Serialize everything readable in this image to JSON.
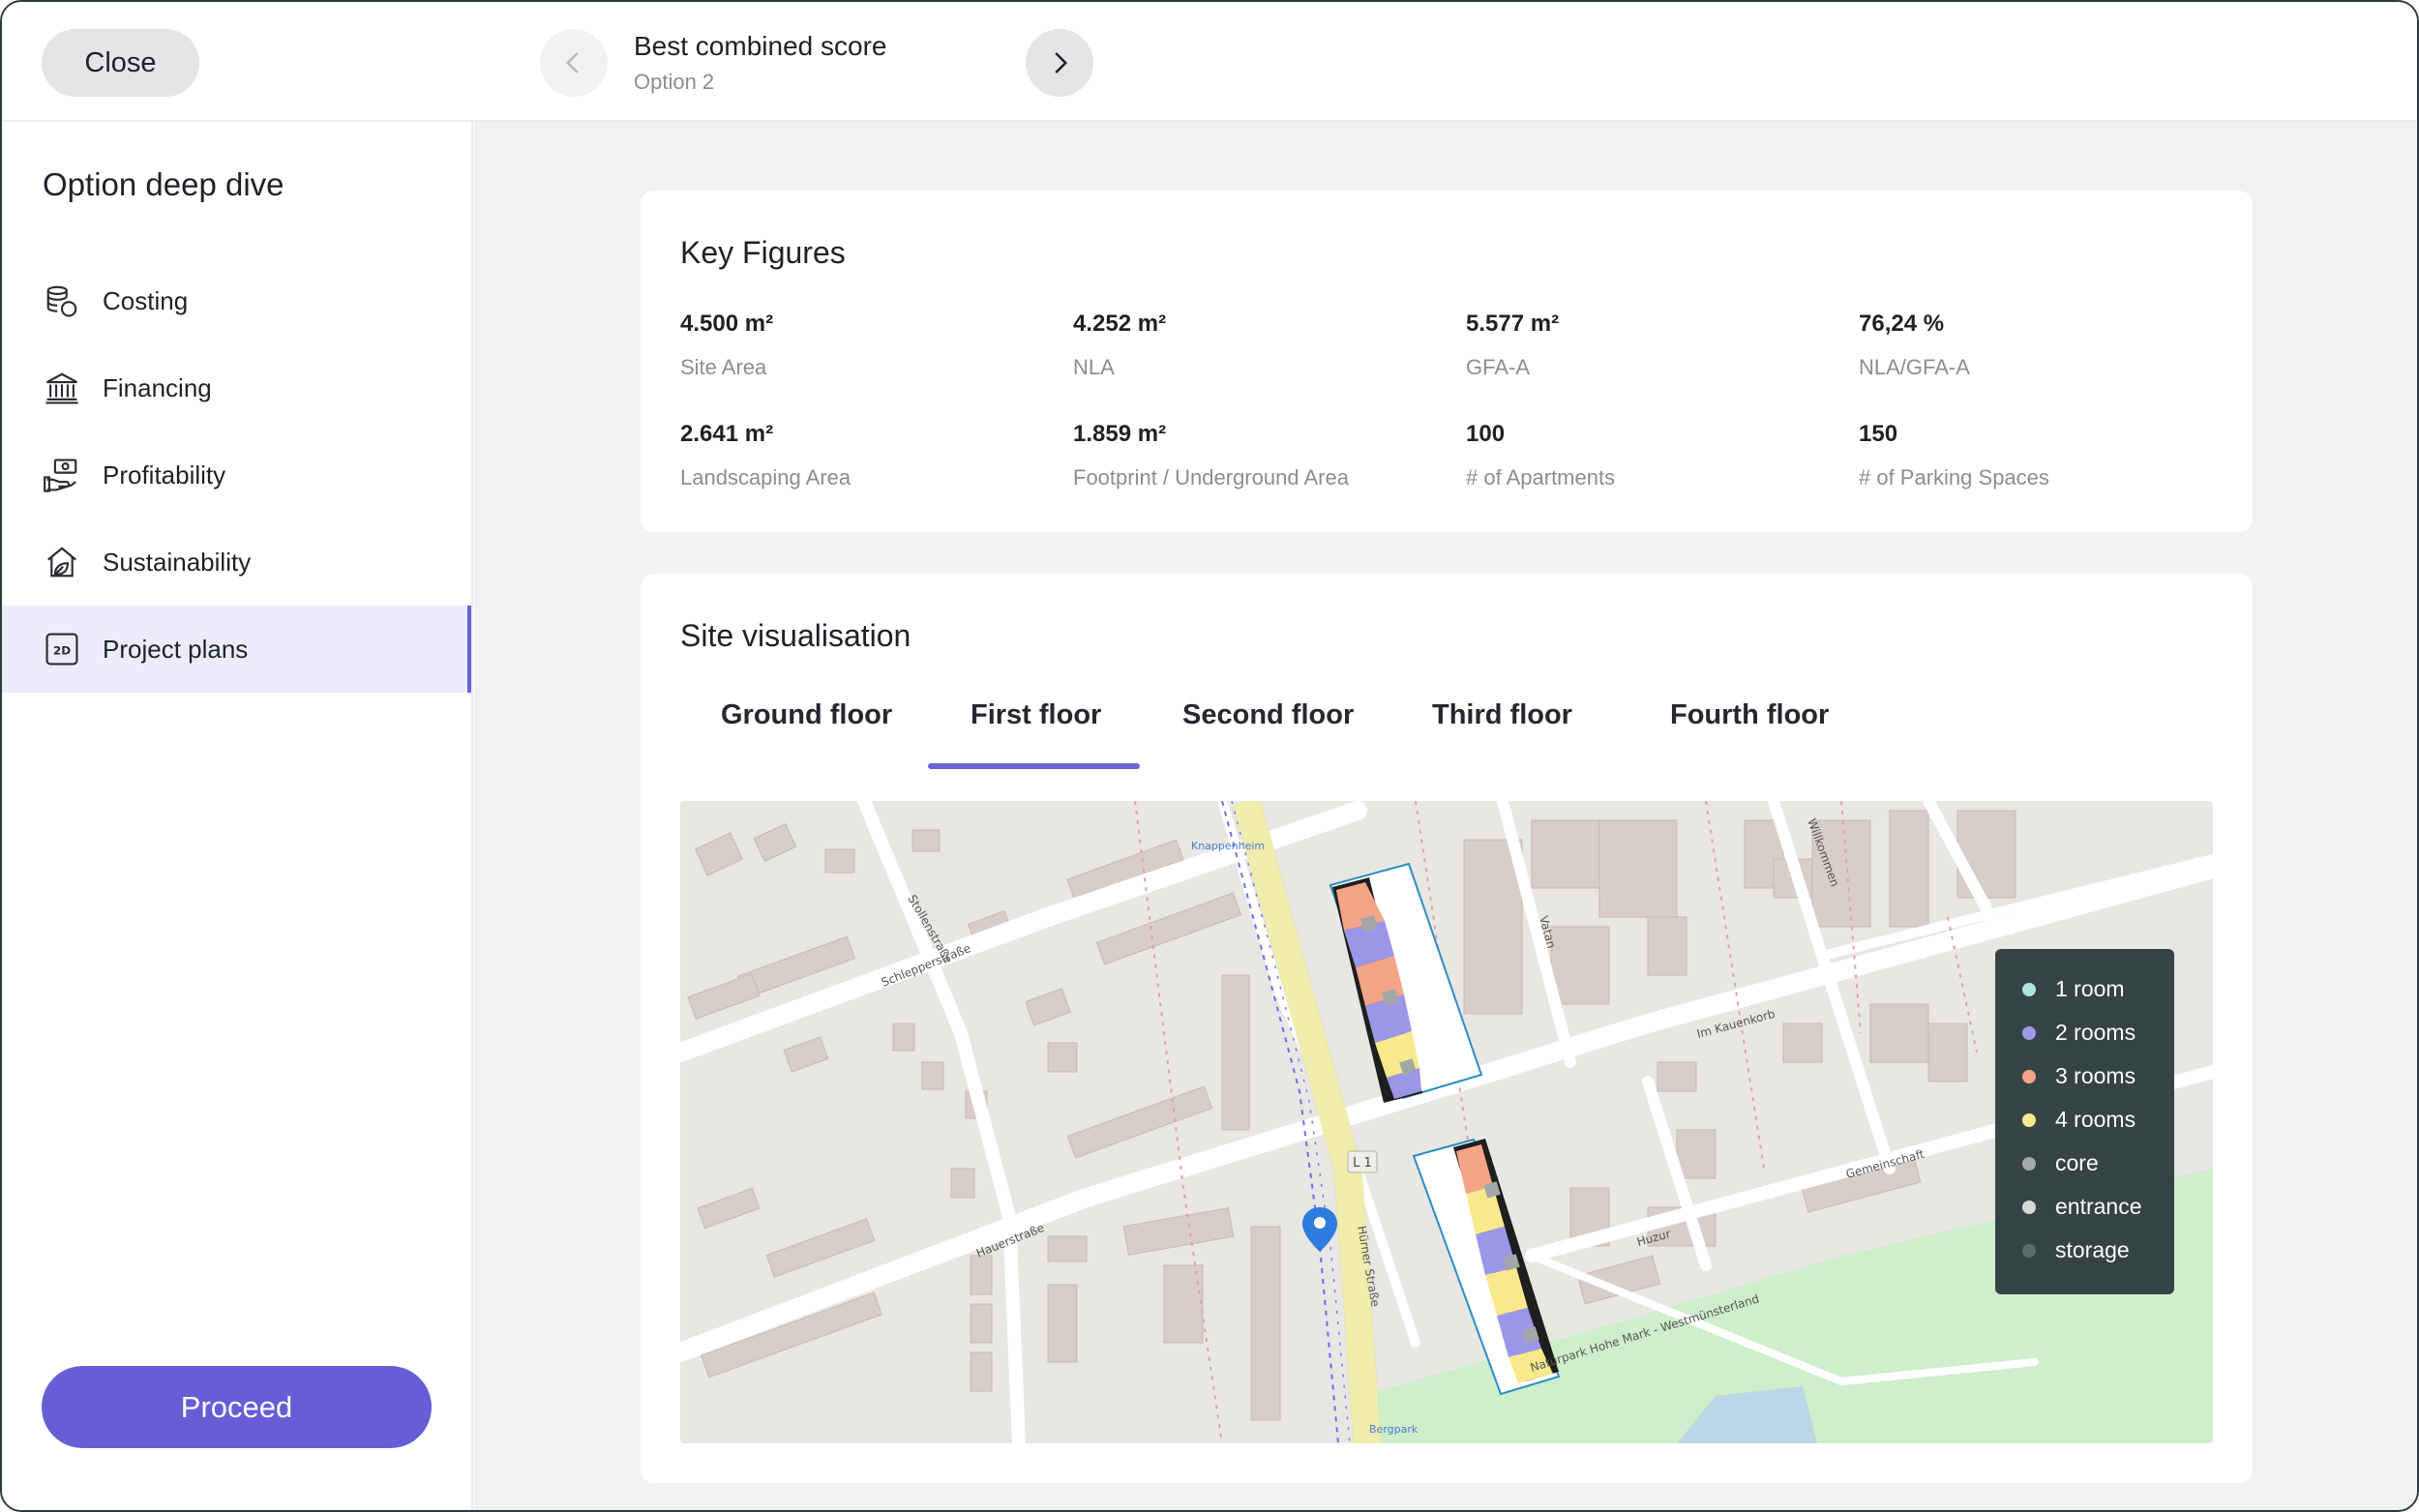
{
  "topbar": {
    "close_label": "Close",
    "score_title": "Best combined score",
    "score_subtitle": "Option 2"
  },
  "sidebar": {
    "title": "Option deep dive",
    "items": [
      {
        "label": "Costing",
        "icon": "coins-stack-icon"
      },
      {
        "label": "Financing",
        "icon": "bank-icon"
      },
      {
        "label": "Profitability",
        "icon": "hand-money-icon"
      },
      {
        "label": "Sustainability",
        "icon": "eco-house-icon"
      },
      {
        "label": "Project plans",
        "icon": "plan-2d-icon",
        "active": true
      }
    ],
    "proceed_label": "Proceed"
  },
  "key_figures": {
    "title": "Key Figures",
    "items": [
      {
        "value": "4.500 m²",
        "label": "Site Area"
      },
      {
        "value": "4.252 m²",
        "label": "NLA"
      },
      {
        "value": "5.577 m²",
        "label": "GFA-A"
      },
      {
        "value": "76,24 %",
        "label": "NLA/GFA-A"
      },
      {
        "value": "2.641 m²",
        "label": "Landscaping Area"
      },
      {
        "value": "1.859 m²",
        "label": "Footprint / Underground Area"
      },
      {
        "value": "100",
        "label": "# of Apartments"
      },
      {
        "value": "150",
        "label": "# of Parking Spaces"
      }
    ]
  },
  "site_visualisation": {
    "title": "Site visualisation",
    "tabs": [
      "Ground floor",
      "First floor",
      "Second floor",
      "Third floor",
      "Fourth floor"
    ],
    "active_tab": "First floor",
    "map_labels": {
      "street_1": "Schlepperstraße",
      "street_2": "Hauerstraße",
      "street_3": "Hürner Straße",
      "street_4": "Im Kauenkorb",
      "street_5": "Gemeinschaft",
      "street_6": "Huzur",
      "street_7": "Naturpark Hohe Mark - Westmünsterland",
      "street_8": "Vatan",
      "street_9": "Willkommen",
      "street_10": "Stollenstraße",
      "poi_1": "Knappenheim",
      "poi_2": "Bergpark",
      "road_badge": "L 1"
    },
    "legend": [
      {
        "label": "1 room",
        "color": "#a8e6df"
      },
      {
        "label": "2 rooms",
        "color": "#9b97e8"
      },
      {
        "label": "3 rooms",
        "color": "#f4a487"
      },
      {
        "label": "4 rooms",
        "color": "#f8e98c"
      },
      {
        "label": "core",
        "color": "#a3a7a8"
      },
      {
        "label": "entrance",
        "color": "#d6d8d8"
      },
      {
        "label": "storage",
        "color": "#59666a"
      }
    ]
  }
}
